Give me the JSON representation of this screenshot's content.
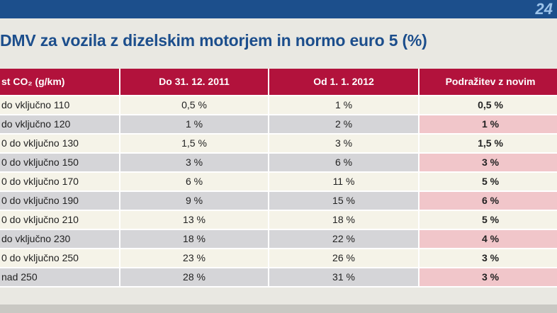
{
  "header": {
    "page_number": "24",
    "title": "DMV za vozila z dizelskim motorjem in normo euro 5 (%)"
  },
  "table": {
    "columns": [
      "st CO₂ (g/km)",
      "Do 31. 12. 2011",
      "Od 1. 1. 2012",
      "Podražitev z novim"
    ],
    "rows": [
      [
        "do vključno 110",
        "0,5 %",
        "1 %",
        "0,5 %"
      ],
      [
        "do vključno 120",
        "1 %",
        "2 %",
        "1 %"
      ],
      [
        "0 do vključno 130",
        "1,5 %",
        "3 %",
        "1,5 %"
      ],
      [
        "0 do vključno 150",
        "3 %",
        "6 %",
        "3 %"
      ],
      [
        "0 do vključno 170",
        "6 %",
        "11 %",
        "5 %"
      ],
      [
        "0 do vključno 190",
        "9 %",
        "15 %",
        "6 %"
      ],
      [
        "0 do vključno 210",
        "13 %",
        "18 %",
        "5 %"
      ],
      [
        "do vključno 230",
        "18 %",
        "22 %",
        "4 %"
      ],
      [
        "0 do vključno 250",
        "23 %",
        "26 %",
        "3 %"
      ],
      [
        "nad 250",
        "28 %",
        "31 %",
        "3 %"
      ]
    ]
  }
}
